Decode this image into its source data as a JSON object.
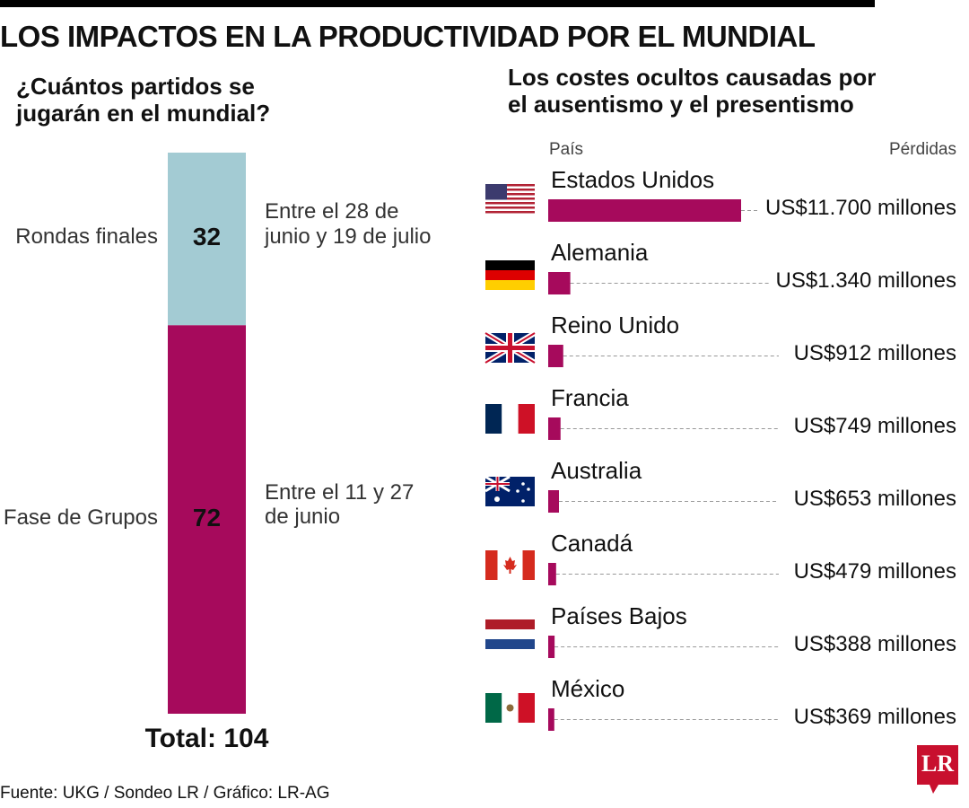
{
  "title": "LOS IMPACTOS EN LA PRODUCTIVIDAD POR EL MUNDIAL",
  "source": "Fuente: UKG / Sondeo LR / Gráfico: LR-AG",
  "logo": "LR",
  "chart_data": [
    {
      "type": "stacked-bar",
      "title": "¿Cuántos partidos se jugarán en el mundial?",
      "categories": [
        "Rondas finales",
        "Fase de Grupos"
      ],
      "values": [
        32,
        72
      ],
      "colors": [
        "#a3cbd3",
        "#a60a5c"
      ],
      "descriptions": [
        "Entre el 28 de junio y 19 de julio",
        "Entre el 11 y 27 de junio"
      ],
      "total_label": "Total:",
      "total": 104
    },
    {
      "type": "hbar",
      "title": "Los costes ocultos causadas por el ausentismo y el presentismo",
      "category_header": "País",
      "value_header": "Pérdidas",
      "categories": [
        "Estados Unidos",
        "Alemania",
        "Reino Unido",
        "Francia",
        "Australia",
        "Canadá",
        "Países Bajos",
        "México"
      ],
      "values": [
        11700,
        1340,
        912,
        749,
        653,
        479,
        388,
        369
      ],
      "value_labels": [
        "US$11.700 millones",
        "US$1.340 millones",
        "US$912 millones",
        "US$749 millones",
        "US$653 millones",
        "US$479 millones",
        "US$388 millones",
        "US$369 millones"
      ],
      "color": "#a60a5c"
    }
  ]
}
